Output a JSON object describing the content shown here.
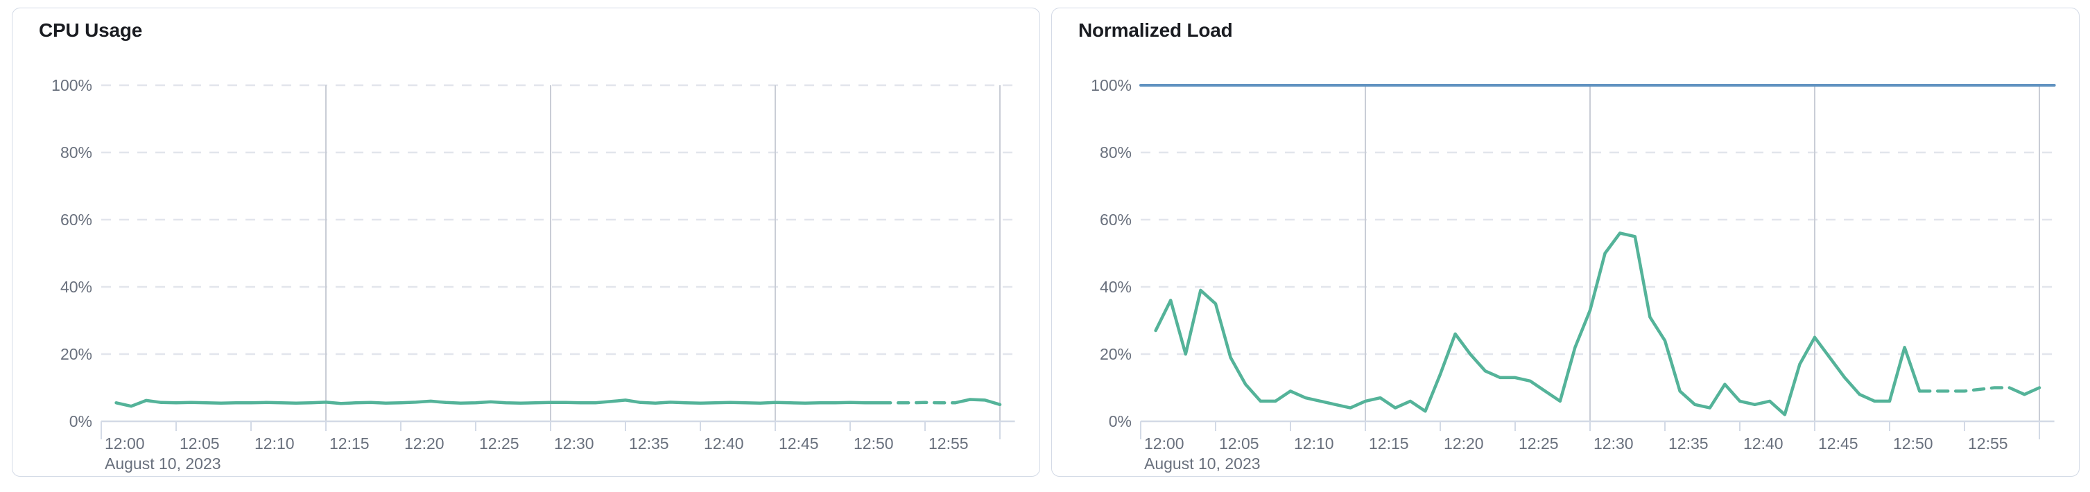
{
  "page": {
    "background": "#ffffff",
    "date_label": "August 10, 2023"
  },
  "colors": {
    "title_text": "#1A1C21",
    "axis_text": "#69707D",
    "grid_dashed": "#E2E5EC",
    "grid_major_vertical": "#C9CDD6",
    "axis_line": "#D3DAE6",
    "series_green": "#54B399",
    "threshold_blue": "#6092C0",
    "panel_border": "#D3DAE6",
    "panel_background": "#FFFFFF"
  },
  "chart_data": [
    {
      "type": "line",
      "title": "CPU Usage",
      "x_axis": {
        "end_minutes": 60,
        "overhang_minutes": 1,
        "tick_interval_minutes": 5,
        "tick_labels": [
          "12:00",
          "12:05",
          "12:10",
          "12:15",
          "12:20",
          "12:25",
          "12:30",
          "12:35",
          "12:40",
          "12:45",
          "12:50",
          "12:55"
        ],
        "date_label": "August 10, 2023",
        "major_gridline_minutes": [
          15,
          30,
          45,
          60
        ]
      },
      "y_axis": {
        "min": 0,
        "max": 100,
        "tick_labels": [
          "0%",
          "20%",
          "40%",
          "60%",
          "80%",
          "100%"
        ],
        "grid_values": [
          20,
          40,
          60,
          80,
          100
        ]
      },
      "series": [
        {
          "name": "cpu-usage",
          "color": "#54B399",
          "width": 4.5,
          "minutes": [
            1,
            2,
            3,
            4,
            5,
            6,
            7,
            8,
            9,
            10,
            11,
            12,
            13,
            14,
            15,
            16,
            17,
            18,
            19,
            20,
            21,
            22,
            23,
            24,
            25,
            26,
            27,
            28,
            29,
            30,
            31,
            32,
            33,
            34,
            35,
            36,
            37,
            38,
            39,
            40,
            41,
            42,
            43,
            44,
            45,
            46,
            47,
            48,
            49,
            50,
            51,
            52,
            53,
            54,
            55,
            56,
            57,
            58,
            59,
            60
          ],
          "values": [
            5.5,
            4.5,
            6.2,
            5.6,
            5.5,
            5.6,
            5.5,
            5.4,
            5.5,
            5.5,
            5.6,
            5.5,
            5.4,
            5.5,
            5.7,
            5.3,
            5.5,
            5.6,
            5.4,
            5.5,
            5.7,
            6.0,
            5.6,
            5.4,
            5.5,
            5.8,
            5.5,
            5.4,
            5.5,
            5.6,
            5.6,
            5.5,
            5.5,
            5.9,
            6.3,
            5.6,
            5.4,
            5.7,
            5.5,
            5.4,
            5.5,
            5.6,
            5.5,
            5.4,
            5.6,
            5.5,
            5.4,
            5.5,
            5.5,
            5.6,
            5.5,
            5.5,
            5.5,
            5.5,
            5.6,
            5.5,
            5.5,
            6.5,
            6.3,
            5.0
          ],
          "segments": [
            {
              "from": 1,
              "to": 52,
              "dashed": false
            },
            {
              "from": 52,
              "to": 57,
              "dashed": true
            },
            {
              "from": 57,
              "to": 60,
              "dashed": false
            }
          ]
        }
      ]
    },
    {
      "type": "line",
      "title": "Normalized Load",
      "x_axis": {
        "end_minutes": 60,
        "overhang_minutes": 1,
        "tick_interval_minutes": 5,
        "tick_labels": [
          "12:00",
          "12:05",
          "12:10",
          "12:15",
          "12:20",
          "12:25",
          "12:30",
          "12:35",
          "12:40",
          "12:45",
          "12:50",
          "12:55"
        ],
        "date_label": "August 10, 2023",
        "major_gridline_minutes": [
          15,
          30,
          45,
          60
        ]
      },
      "y_axis": {
        "min": 0,
        "max": 100,
        "tick_labels": [
          "0%",
          "20%",
          "40%",
          "60%",
          "80%",
          "100%"
        ],
        "grid_values": [
          20,
          40,
          60,
          80,
          100
        ]
      },
      "series": [
        {
          "name": "load-limit-threshold",
          "color": "#6092C0",
          "width": 4,
          "minutes": [
            0,
            61
          ],
          "values": [
            100,
            100
          ],
          "segments": [
            {
              "from": 0,
              "to": 61,
              "dashed": false
            }
          ]
        },
        {
          "name": "normalized-load",
          "color": "#54B399",
          "width": 4.5,
          "minutes": [
            1,
            2,
            3,
            4,
            5,
            6,
            7,
            8,
            9,
            10,
            11,
            12,
            13,
            14,
            15,
            16,
            17,
            18,
            19,
            20,
            21,
            22,
            23,
            24,
            25,
            26,
            27,
            28,
            29,
            30,
            31,
            32,
            33,
            34,
            35,
            36,
            37,
            38,
            39,
            40,
            41,
            42,
            43,
            44,
            45,
            46,
            47,
            48,
            49,
            50,
            51,
            52,
            53,
            54,
            55,
            56,
            57,
            58,
            59,
            60
          ],
          "values": [
            27,
            36,
            20,
            39,
            35,
            19,
            11,
            6,
            6,
            9,
            7,
            6,
            5,
            4,
            6,
            7,
            4,
            6,
            3,
            14,
            26,
            20,
            15,
            13,
            13,
            12,
            9,
            6,
            22,
            33,
            50,
            56,
            55,
            31,
            24,
            9,
            5,
            4,
            11,
            6,
            5,
            6,
            2,
            17,
            25,
            19,
            13,
            8,
            6,
            6,
            22,
            9,
            9,
            9,
            9,
            9.5,
            10,
            10,
            8,
            10
          ],
          "segments": [
            {
              "from": 1,
              "to": 52,
              "dashed": false
            },
            {
              "from": 52,
              "to": 58,
              "dashed": true
            },
            {
              "from": 58,
              "to": 60,
              "dashed": false
            }
          ]
        }
      ]
    }
  ]
}
